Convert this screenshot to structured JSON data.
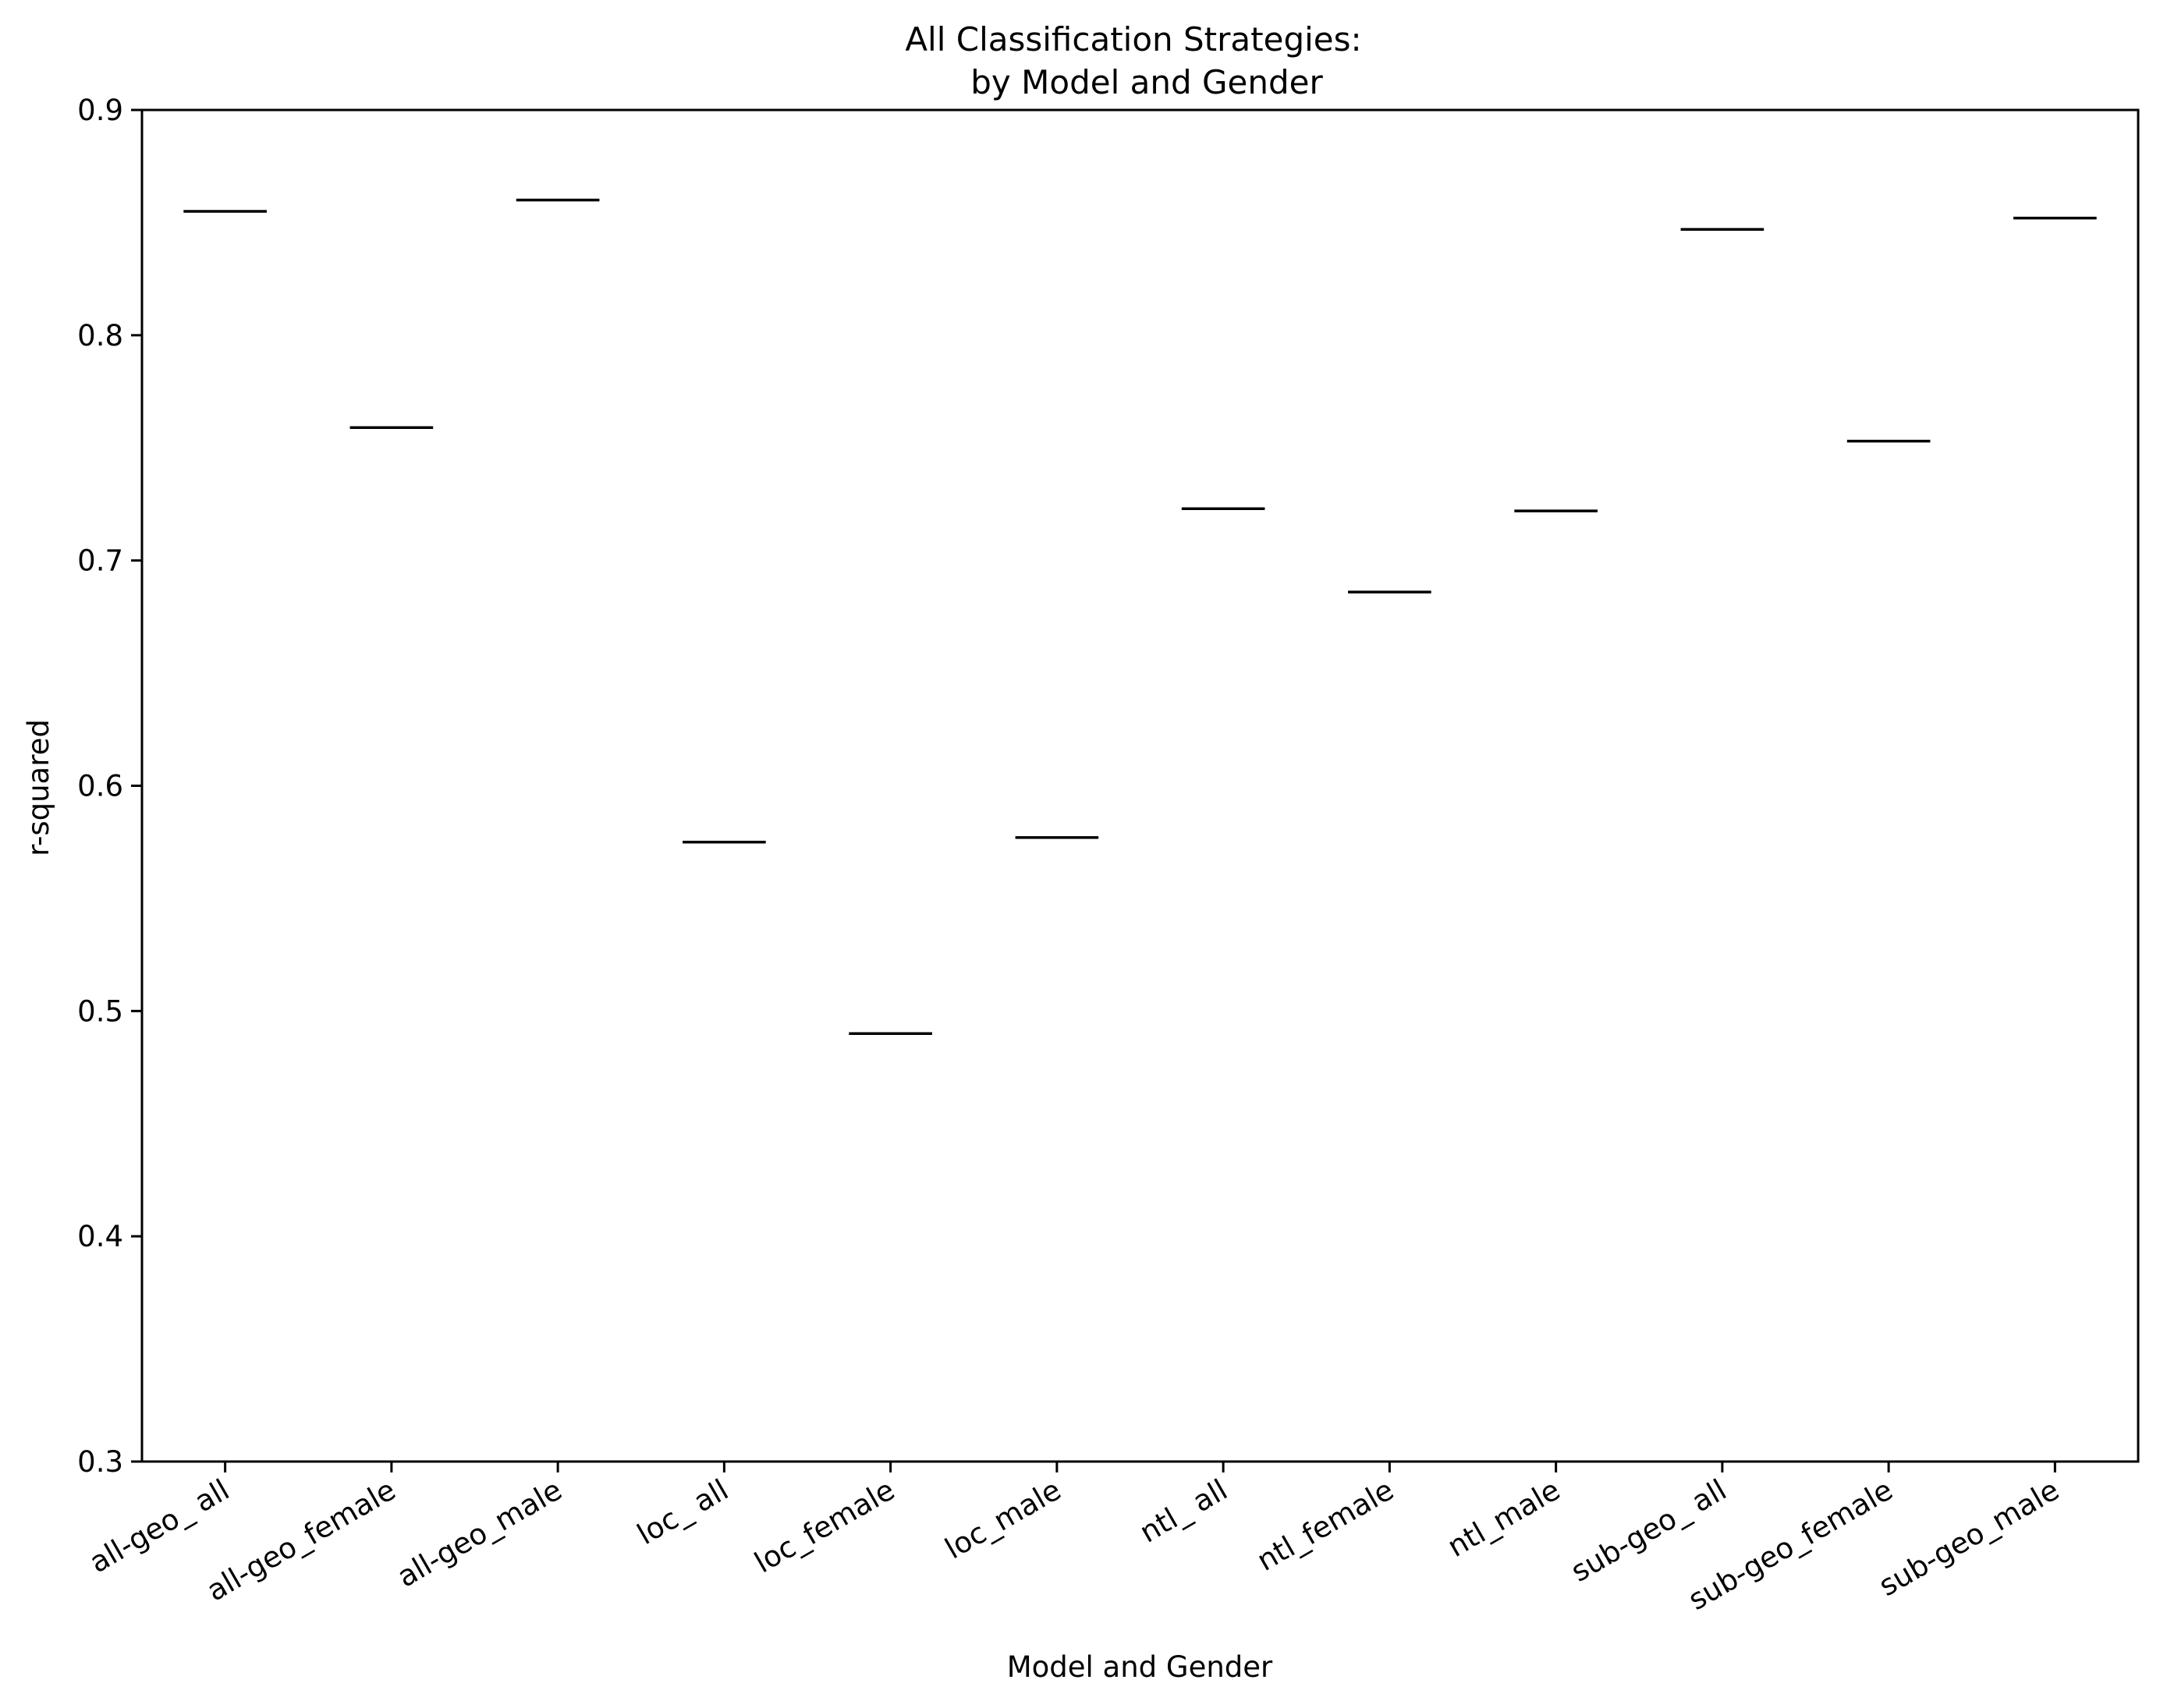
{
  "chart_data": {
    "type": "box",
    "title": [
      "All Classification Strategies:",
      "by Model and Gender"
    ],
    "xlabel": "Model and Gender",
    "ylabel": "r-squared",
    "ylim": [
      0.3,
      0.9
    ],
    "yticks": [
      0.3,
      0.4,
      0.5,
      0.6,
      0.7,
      0.8,
      0.9
    ],
    "ytick_labels": [
      "0.3",
      "0.4",
      "0.5",
      "0.6",
      "0.7",
      "0.8",
      "0.9"
    ],
    "grid": false,
    "legend": "none",
    "categories": [
      "all-geo_ all",
      "all-geo_female",
      "all-geo_male",
      "loc_ all",
      "loc_female",
      "loc_male",
      "ntl_ all",
      "ntl_female",
      "ntl_male",
      "sub-geo_ all",
      "sub-geo_female",
      "sub-geo_male"
    ],
    "values": [
      0.855,
      0.759,
      0.86,
      0.575,
      0.49,
      0.577,
      0.723,
      0.686,
      0.722,
      0.847,
      0.753,
      0.852
    ],
    "line_color": "#000000"
  }
}
